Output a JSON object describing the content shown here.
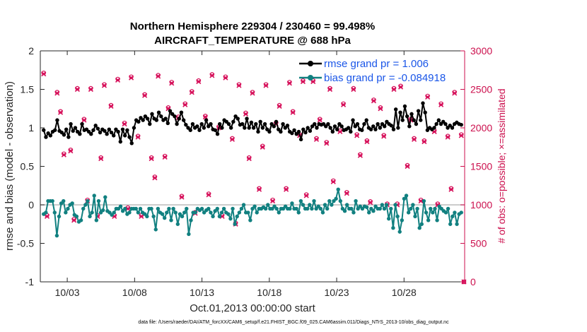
{
  "chart_data": {
    "type": "line",
    "title_line1": "Northern Hemisphere 229304 / 230460 = 99.498%",
    "title_line2": "AIRCRAFT_TEMPERATURE @ 688 hPa",
    "xlabel": "Oct.01,2013 00:00:00 start",
    "ylabel_left": "rmse and bias (model - observation)",
    "ylabel_right": "# of obs: o=possible; ×=assimilated",
    "footnote": "data file: /Users/raeder/DAI/ATM_forcXX/CAM6_setup/f.e21.FHIST_BGC.f09_025.CAM6assim.011/Diags_NTrS_2013-10/obs_diag_output.nc",
    "xlim": [
      1,
      32.5
    ],
    "ylim_left": [
      -1,
      2
    ],
    "ylim_right": [
      0,
      3000
    ],
    "x_ticks": [
      3,
      8,
      13,
      18,
      23,
      28
    ],
    "x_tick_labels": [
      "10/03",
      "10/08",
      "10/13",
      "10/18",
      "10/23",
      "10/28"
    ],
    "y_ticks_left": [
      -1,
      -0.5,
      0,
      0.5,
      1,
      1.5,
      2
    ],
    "y_tick_labels_left": [
      "-1",
      "-0.5",
      "0",
      "0.5",
      "1",
      "1.5",
      "2"
    ],
    "y_ticks_right": [
      0,
      500,
      1000,
      1500,
      2000,
      2500,
      3000
    ],
    "y_tick_labels_right": [
      "0",
      "500",
      "1000",
      "1500",
      "2000",
      "2500",
      "3000"
    ],
    "legend": [
      {
        "name": "rmse",
        "label": "rmse grand pr = 1.006",
        "color": "#000000"
      },
      {
        "name": "bias",
        "label": "bias grand pr = -0.084918",
        "color": "#118080"
      }
    ],
    "colors": {
      "rmse": "#000000",
      "bias": "#118080",
      "obs": "#d6105a",
      "zero_line": "#bbbbbb",
      "right_axis": "#cc0f4d",
      "left_axis": "#262626"
    },
    "series": [
      {
        "name": "rmse",
        "values": [
          0.97,
          0.88,
          0.93,
          0.9,
          0.95,
          0.97,
          1.1,
          0.96,
          0.94,
          0.91,
          0.98,
          0.88,
          1.05,
          0.96,
          1.0,
          0.95,
          0.92,
          1.05,
          0.97,
          0.98,
          0.95,
          0.92,
          0.97,
          1.03,
          0.99,
          0.94,
          0.98,
          0.96,
          0.92,
          0.98,
          0.94,
          0.9,
          0.98,
          0.95,
          0.82,
          0.98,
          0.9,
          0.97,
          0.88,
          0.8,
          1.0,
          1.1,
          1.08,
          1.13,
          1.1,
          1.15,
          1.12,
          1.05,
          1.18,
          1.12,
          1.1,
          1.2,
          1.15,
          1.1,
          1.12,
          1.06,
          1.22,
          1.18,
          1.15,
          1.05,
          1.12,
          1.2,
          1.1,
          1.04,
          1.0,
          0.97,
          1.05,
          1.0,
          1.02,
          0.97,
          1.05,
          1.0,
          1.1,
          1.02,
          1.05,
          0.98,
          0.97,
          0.92,
          1.05,
          1.0,
          1.1,
          1.08,
          1.05,
          1.0,
          1.08,
          1.15,
          1.12,
          1.04,
          1.05,
          1.0,
          1.12,
          1.0,
          1.07,
          1.0,
          1.05,
          0.95,
          1.08,
          1.0,
          1.05,
          0.98,
          0.95,
          1.05,
          1.02,
          1.08,
          0.98,
          0.95,
          1.05,
          1.0,
          1.03,
          0.95,
          0.93,
          0.97,
          0.92,
          0.95,
          0.85,
          0.98,
          0.94,
          1.0,
          0.96,
          1.02,
          1.05,
          1.0,
          1.05,
          1.04,
          1.05,
          1.02,
          1.05,
          1.0,
          0.95,
          1.02,
          0.98,
          1.05,
          1.02,
          0.97,
          0.98,
          1.0,
          0.95,
          1.1,
          1.02,
          1.05,
          0.98,
          0.97,
          1.05,
          1.1,
          1.0,
          0.98,
          1.02,
          0.98,
          1.05,
          1.0,
          1.05,
          1.02,
          1.08,
          1.05,
          1.03,
          0.98,
          1.24,
          1.0,
          1.2,
          1.1,
          1.28,
          1.15,
          1.02,
          1.18,
          1.1,
          1.05,
          1.22,
          1.1,
          1.32,
          1.2,
          0.97,
          1.0,
          0.98,
          1.0,
          1.05,
          1.1,
          1.05,
          1.08,
          1.05,
          1.0,
          1.03,
          1.0,
          1.05,
          1.07,
          1.05,
          1.04
        ]
      },
      {
        "name": "bias",
        "values": [
          -0.12,
          -0.1,
          0.05,
          0.05,
          0.05,
          -0.1,
          -0.4,
          -0.15,
          0.02,
          0.05,
          -0.1,
          -0.05,
          0.0,
          0.02,
          -0.13,
          -0.15,
          -0.22,
          -0.2,
          -0.05,
          0.0,
          0.05,
          -0.15,
          -0.1,
          0.12,
          -0.2,
          0.05,
          -0.1,
          -0.07,
          0.1,
          -0.08,
          -0.1,
          -0.13,
          -0.1,
          -0.05,
          -0.05,
          -0.02,
          -0.08,
          -0.05,
          -0.12,
          -0.1,
          -0.05,
          -0.05,
          -0.05,
          -0.1,
          -0.05,
          -0.1,
          -0.12,
          -0.15,
          -0.05,
          -0.05,
          -0.15,
          -0.32,
          -0.05,
          -0.1,
          -0.12,
          -0.17,
          -0.1,
          -0.05,
          -0.2,
          -0.05,
          -0.1,
          -0.25,
          -0.12,
          -0.15,
          -0.1,
          -0.05,
          -0.38,
          -0.2,
          -0.1,
          -0.1,
          -0.05,
          -0.07,
          -0.05,
          -0.1,
          -0.07,
          -0.05,
          -0.1,
          -0.15,
          -0.08,
          -0.05,
          -0.15,
          -0.1,
          -0.05,
          -0.1,
          -0.12,
          -0.18,
          -0.05,
          -0.25,
          -0.15,
          -0.1,
          -0.05,
          0.0,
          -0.1,
          -0.1,
          -0.2,
          -0.05,
          -0.02,
          -0.1,
          -0.05,
          -0.05,
          -0.03,
          -0.05,
          0.0,
          -0.05,
          -0.05,
          -0.02,
          -0.05,
          -0.1,
          -0.05,
          -0.05,
          -0.02,
          -0.05,
          -0.05,
          0.02,
          -0.05,
          -0.05,
          -0.1,
          0.05,
          0.0,
          -0.05,
          -0.05,
          0.0,
          -0.05,
          0.05,
          -0.05,
          -0.02,
          -0.05,
          -0.1,
          0.0,
          -0.05,
          0.05,
          0.0,
          0.05,
          0.08,
          0.2,
          0.05,
          -0.05,
          -0.08,
          0.0,
          -0.05,
          -0.05,
          -0.1,
          0.05,
          -0.05,
          -0.02,
          -0.05,
          -0.02,
          -0.03,
          -0.1,
          -0.05,
          -0.08,
          -0.02,
          -0.05,
          -0.05,
          0.0,
          -0.05,
          0.0,
          -0.18,
          -0.05,
          -0.3,
          0.0,
          -0.15,
          -0.35,
          -0.2,
          0.08,
          0.12,
          -0.1,
          -0.05,
          0.0,
          -0.15,
          -0.05,
          -0.3,
          -0.25,
          0.05,
          -0.1,
          -0.2,
          -0.05,
          -0.1,
          -0.05,
          -0.2,
          -0.02,
          -0.05,
          -0.08,
          -0.1,
          -0.05,
          -0.25,
          -0.15,
          -0.1,
          -0.25,
          -0.12,
          -0.1
        ]
      }
    ],
    "obs_counts": {
      "x": [
        1.25,
        1.5,
        2.25,
        2.5,
        2.75,
        3.25,
        3.5,
        3.75,
        4.25,
        4.5,
        4.75,
        5.25,
        5.5,
        5.75,
        6.25,
        6.5,
        6.75,
        7.25,
        7.5,
        7.75,
        8.25,
        8.5,
        8.75,
        9.25,
        9.5,
        9.75,
        10.25,
        10.5,
        10.75,
        11.25,
        11.5,
        11.75,
        12.25,
        12.5,
        12.75,
        13.25,
        13.5,
        13.75,
        14.25,
        14.5,
        14.75,
        15.25,
        15.5,
        15.75,
        16.25,
        16.5,
        16.75,
        17.25,
        17.5,
        17.75,
        18.25,
        18.5,
        18.75,
        19.25,
        19.5,
        19.75,
        20.25,
        20.5,
        20.75,
        21.25,
        21.5,
        21.75,
        22.25,
        22.5,
        22.75,
        23.25,
        23.5,
        23.75,
        24.25,
        24.5,
        24.75,
        25.25,
        25.5,
        25.75,
        26.25,
        26.5,
        26.75,
        27.25,
        27.5,
        27.75,
        28.25,
        28.5,
        28.75,
        29.25,
        29.5,
        29.75,
        30.25,
        30.5,
        30.75,
        31.25,
        31.5,
        31.75,
        32.25
      ],
      "possible": [
        2700,
        850,
        2450,
        2200,
        1650,
        1700,
        800,
        2500,
        2100,
        1050,
        2500,
        850,
        1600,
        2550,
        2280,
        850,
        2620,
        2050,
        950,
        2650,
        1880,
        850,
        2420,
        1600,
        1350,
        2670,
        1620,
        2250,
        2580,
        2130,
        1100,
        2300,
        2460,
        890,
        2600,
        2140,
        1130,
        2680,
        2000,
        850,
        2650,
        1850,
        750,
        2550,
        2180,
        1600,
        2450,
        1200,
        1750,
        2550,
        1050,
        2050,
        2280,
        1200,
        2580,
        2200,
        1900,
        2600,
        1120,
        2600,
        1850,
        2100,
        1800,
        2500,
        1300,
        1950,
        2300,
        1150,
        2500,
        1900,
        1640,
        1820,
        1030,
        2350,
        2250,
        1890,
        1000,
        2500,
        1000,
        2530,
        1500,
        2100,
        1850,
        1050,
        1820,
        2400,
        1950,
        1000,
        2300,
        1880,
        1200,
        2450,
        1900
      ],
      "assimilated": [
        2700,
        850,
        2450,
        2200,
        1650,
        1700,
        800,
        2500,
        2100,
        1050,
        2500,
        850,
        1600,
        2550,
        2280,
        850,
        2620,
        2050,
        950,
        2650,
        1880,
        850,
        2420,
        1600,
        1350,
        2670,
        1620,
        2250,
        2580,
        2130,
        1100,
        2300,
        2460,
        890,
        2600,
        2140,
        1130,
        2680,
        2000,
        850,
        2650,
        1850,
        750,
        2550,
        2180,
        1600,
        2450,
        1200,
        1750,
        2550,
        1050,
        2050,
        2280,
        1200,
        2580,
        2200,
        1900,
        2600,
        1120,
        2600,
        1850,
        2100,
        1800,
        2500,
        1300,
        1950,
        2300,
        1150,
        2500,
        1900,
        1640,
        1820,
        1030,
        2350,
        2250,
        1890,
        1000,
        2500,
        1000,
        2530,
        1500,
        2100,
        1850,
        1050,
        1820,
        2400,
        1950,
        1000,
        2300,
        1880,
        1200,
        2450,
        1900
      ]
    }
  }
}
